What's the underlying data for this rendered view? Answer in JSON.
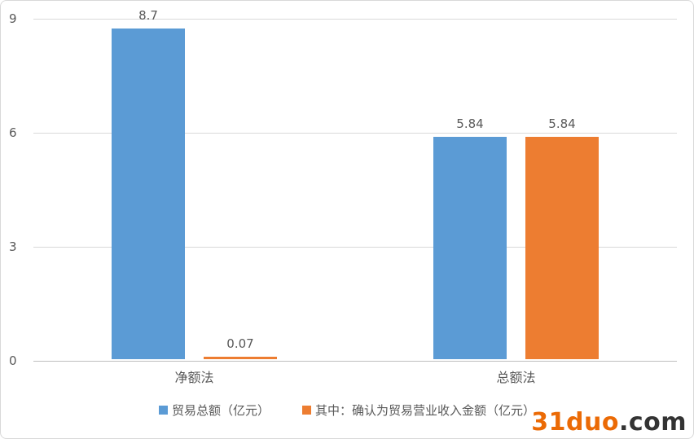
{
  "chart_data": {
    "type": "bar",
    "title": "",
    "xlabel": "",
    "ylabel": "",
    "categories": [
      "净额法",
      "总额法"
    ],
    "series": [
      {
        "name": "贸易总额（亿元）",
        "color": "#5B9BD5",
        "values": [
          8.7,
          5.84
        ],
        "labels": [
          "8.7",
          "5.84"
        ]
      },
      {
        "name": "其中：确认为贸易营业收入金额（亿元）",
        "color": "#ED7D31",
        "values": [
          0.07,
          5.84
        ],
        "labels": [
          "0.07",
          "5.84"
        ]
      }
    ],
    "ylim": [
      0,
      9
    ],
    "yticks": [
      0,
      3,
      6,
      9
    ],
    "grid": true,
    "legend_position": "bottom"
  },
  "colors": {
    "gridline": "#d9d9d9",
    "axis_line": "#bfbfbf",
    "text": "#595959"
  },
  "watermark": {
    "brand": "31duo",
    "suffix": ".com",
    "brand_color": "#EB6A05"
  }
}
